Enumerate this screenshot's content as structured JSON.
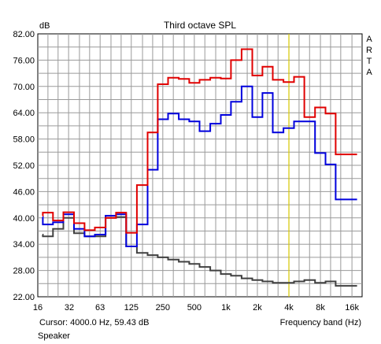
{
  "chart_data": {
    "type": "line",
    "title": "Third octave SPL",
    "ylabel": "dB",
    "xlabel": "Frequency band (Hz)",
    "watermark": "ARTA",
    "y_scale": "linear",
    "x_scale": "log",
    "ylim": [
      22,
      82
    ],
    "xlim": [
      16,
      20000
    ],
    "y_ticks": [
      "82.00",
      "76.00",
      "70.00",
      "64.00",
      "58.00",
      "52.00",
      "46.00",
      "40.00",
      "34.00",
      "28.00",
      "22.00"
    ],
    "y_tick_values": [
      82,
      76,
      70,
      64,
      58,
      52,
      46,
      40,
      34,
      28,
      22
    ],
    "x_ticks": [
      {
        "label": "16",
        "value": 16
      },
      {
        "label": "32",
        "value": 32
      },
      {
        "label": "63",
        "value": 63
      },
      {
        "label": "125",
        "value": 125
      },
      {
        "label": "250",
        "value": 250
      },
      {
        "label": "500",
        "value": 500
      },
      {
        "label": "1k",
        "value": 1000
      },
      {
        "label": "2k",
        "value": 2000
      },
      {
        "label": "4k",
        "value": 4000
      },
      {
        "label": "8k",
        "value": 8000
      },
      {
        "label": "16k",
        "value": 16000
      }
    ],
    "grid": true,
    "cursor_hz": 4000,
    "cursor_text": "Cursor:  4000.0 Hz, 59.43 dB",
    "channel_label": "Speaker",
    "bands_hz": [
      16,
      20,
      25,
      31.5,
      40,
      50,
      63,
      80,
      100,
      125,
      160,
      200,
      250,
      315,
      400,
      500,
      630,
      800,
      1000,
      1250,
      1600,
      2000,
      2500,
      3150,
      4000,
      5000,
      6300,
      8000,
      10000,
      12500,
      16000
    ],
    "series": [
      {
        "color": "#e00000",
        "values": [
          40.5,
          41.2,
          39.4,
          41.3,
          38.8,
          37.2,
          37.8,
          40.0,
          41.2,
          36.6,
          47.5,
          59.5,
          70.5,
          72.0,
          71.7,
          70.8,
          71.5,
          72.0,
          71.8,
          76.0,
          78.5,
          72.5,
          74.5,
          71.5,
          71.0,
          72.2,
          63.0,
          65.2,
          63.8,
          54.5,
          54.5
        ]
      },
      {
        "color": "#0000dd",
        "values": [
          40.2,
          38.5,
          39.0,
          40.8,
          37.5,
          35.8,
          36.2,
          40.5,
          40.8,
          33.5,
          38.5,
          51.0,
          62.5,
          63.8,
          62.5,
          62.0,
          59.8,
          61.5,
          63.5,
          66.5,
          70.0,
          63.0,
          68.5,
          59.5,
          60.5,
          62.0,
          62.0,
          54.8,
          52.2,
          44.2,
          44.2
        ]
      },
      {
        "color": "#404040",
        "values": [
          36.2,
          35.8,
          37.5,
          40.0,
          36.5,
          35.8,
          35.8,
          40.0,
          40.2,
          33.5,
          32.0,
          31.5,
          31.0,
          30.5,
          30.0,
          29.5,
          28.8,
          28.0,
          27.2,
          26.8,
          26.2,
          25.8,
          25.5,
          25.2,
          25.2,
          25.5,
          25.8,
          25.2,
          25.5,
          24.5,
          24.5
        ]
      }
    ]
  }
}
